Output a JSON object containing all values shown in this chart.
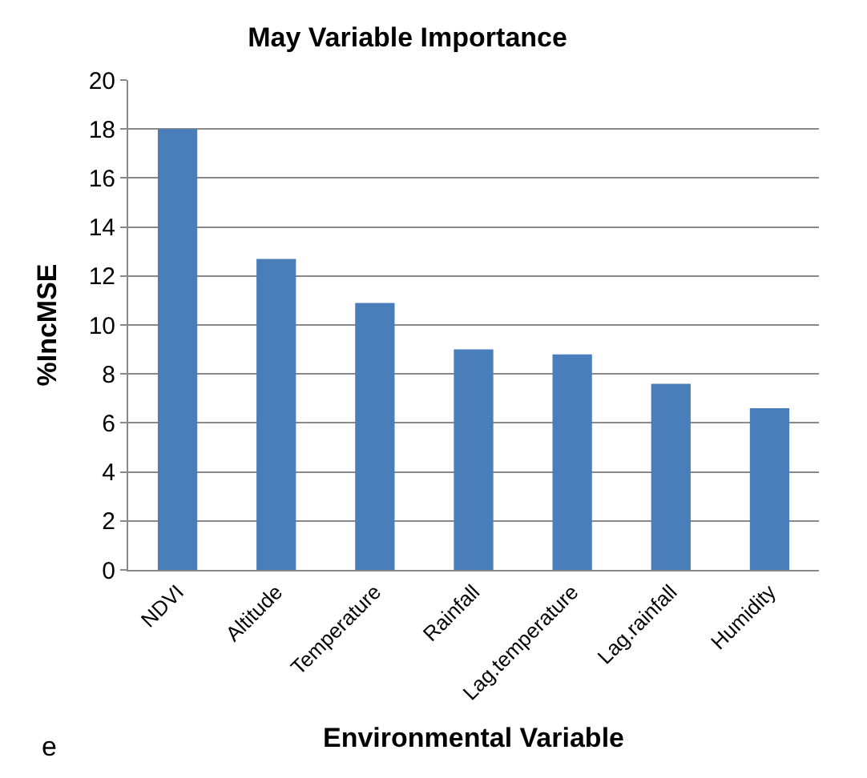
{
  "chart_data": {
    "type": "bar",
    "title": "May Variable Importance",
    "xlabel": "Environmental Variable",
    "ylabel": "%IncMSE",
    "categories": [
      "NDVI",
      "Altitude",
      "Temperature",
      "Rainfall",
      "Lag.temperature",
      "Lag.rainfall",
      "Humidity"
    ],
    "values": [
      18.0,
      12.7,
      10.9,
      9.0,
      8.8,
      7.6,
      6.6
    ],
    "color": "#4a7ebb",
    "ylim": [
      0,
      20
    ],
    "yticks": [
      0,
      2,
      4,
      6,
      8,
      10,
      12,
      14,
      16,
      18,
      20
    ],
    "grid": "y",
    "annotations": [
      "e"
    ]
  }
}
